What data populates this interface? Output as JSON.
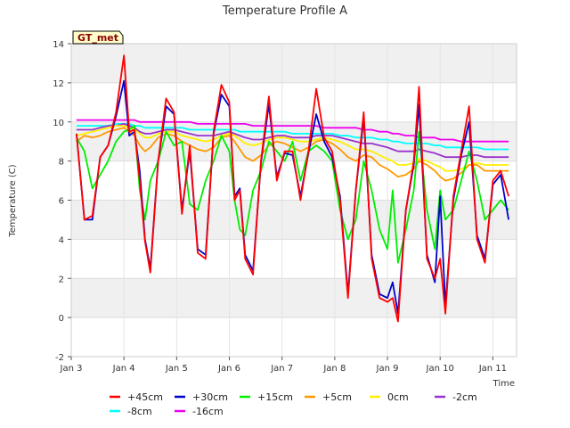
{
  "chart_data": {
    "type": "line",
    "title": "Temperature Profile A",
    "xlabel": "Time",
    "ylabel": "Temperature (C)",
    "ylim": [
      -2,
      14
    ],
    "yticks": [
      -2,
      0,
      2,
      4,
      6,
      8,
      10,
      12,
      14
    ],
    "xlim": [
      3,
      11.45
    ],
    "xticks": [
      3,
      4,
      5,
      6,
      7,
      8,
      9,
      10,
      11
    ],
    "xtick_labels": [
      "Jan 3",
      "Jan 4",
      "Jan 5",
      "Jan 6",
      "Jan 7",
      "Jan 8",
      "Jan 9",
      "Jan 10",
      "Jan 11"
    ],
    "grid": true,
    "badge": "GT_met",
    "legend_placement": "bottom",
    "x": [
      3.1,
      3.25,
      3.4,
      3.55,
      3.7,
      3.85,
      4.0,
      4.1,
      4.2,
      4.3,
      4.4,
      4.5,
      4.65,
      4.8,
      4.95,
      5.1,
      5.25,
      5.4,
      5.55,
      5.7,
      5.85,
      6.0,
      6.1,
      6.2,
      6.3,
      6.45,
      6.6,
      6.75,
      6.9,
      7.05,
      7.2,
      7.35,
      7.5,
      7.65,
      7.8,
      7.95,
      8.1,
      8.25,
      8.4,
      8.55,
      8.7,
      8.85,
      9.0,
      9.1,
      9.2,
      9.35,
      9.5,
      9.6,
      9.75,
      9.9,
      10.0,
      10.1,
      10.25,
      10.4,
      10.55,
      10.7,
      10.85,
      11.0,
      11.15,
      11.3
    ],
    "series": [
      {
        "name": "+45cm",
        "color": "#ff0000",
        "values": [
          9.4,
          5.0,
          5.2,
          8.2,
          8.8,
          10.5,
          13.4,
          9.5,
          9.6,
          7.0,
          3.9,
          2.3,
          8.0,
          11.2,
          10.5,
          5.3,
          8.8,
          3.3,
          3.0,
          9.5,
          11.9,
          11.0,
          6.0,
          6.5,
          3.0,
          2.2,
          8.0,
          11.3,
          7.0,
          8.5,
          8.5,
          6.0,
          8.5,
          11.7,
          9.2,
          8.5,
          6.0,
          1.0,
          6.5,
          10.5,
          3.0,
          1.0,
          0.8,
          1.0,
          -0.2,
          5.5,
          8.0,
          11.8,
          3.0,
          2.0,
          3.0,
          0.2,
          6.2,
          8.5,
          10.8,
          4.0,
          2.8,
          7.0,
          7.5,
          6.2
        ]
      },
      {
        "name": "+30cm",
        "color": "#0000cc",
        "values": [
          9.4,
          5.0,
          5.0,
          8.2,
          8.8,
          10.3,
          12.1,
          9.3,
          9.5,
          7.5,
          4.0,
          2.5,
          8.0,
          10.8,
          10.4,
          5.5,
          8.5,
          3.5,
          3.2,
          9.4,
          11.4,
          10.8,
          6.2,
          6.6,
          3.2,
          2.4,
          7.9,
          10.9,
          7.2,
          8.4,
          8.3,
          6.2,
          8.4,
          10.4,
          9.0,
          8.2,
          6.2,
          1.2,
          6.5,
          10.2,
          3.2,
          1.2,
          1.0,
          1.8,
          0.2,
          5.5,
          7.8,
          10.9,
          3.2,
          1.8,
          6.2,
          0.6,
          6.0,
          8.3,
          10.0,
          4.2,
          3.0,
          6.8,
          7.3,
          5.0
        ]
      },
      {
        "name": "+15cm",
        "color": "#00ee00",
        "values": [
          9.2,
          8.5,
          6.6,
          7.3,
          8.0,
          9.0,
          9.5,
          9.6,
          9.8,
          6.5,
          5.0,
          7.0,
          8.0,
          9.5,
          8.8,
          9.0,
          5.8,
          5.5,
          7.0,
          8.0,
          9.3,
          8.5,
          6.0,
          4.5,
          4.2,
          6.5,
          7.5,
          9.0,
          8.5,
          8.0,
          9.0,
          7.0,
          8.5,
          8.8,
          8.5,
          8.0,
          5.5,
          4.0,
          5.0,
          8.0,
          6.5,
          4.5,
          3.5,
          6.5,
          2.8,
          4.5,
          6.5,
          9.5,
          5.5,
          3.5,
          6.5,
          5.0,
          5.5,
          7.0,
          8.5,
          7.0,
          5.0,
          5.5,
          6.0,
          5.5
        ]
      },
      {
        "name": "+5cm",
        "color": "#ff9900",
        "values": [
          9.0,
          9.3,
          9.2,
          9.3,
          9.5,
          9.6,
          9.7,
          9.5,
          9.3,
          8.8,
          8.5,
          8.7,
          9.2,
          9.4,
          9.3,
          9.0,
          8.8,
          8.6,
          8.5,
          8.7,
          9.2,
          9.3,
          9.0,
          8.6,
          8.2,
          8.0,
          8.3,
          8.8,
          9.0,
          8.9,
          8.7,
          8.5,
          8.7,
          9.0,
          9.1,
          8.9,
          8.6,
          8.2,
          8.0,
          8.3,
          8.2,
          7.8,
          7.6,
          7.4,
          7.2,
          7.3,
          7.6,
          8.0,
          7.8,
          7.5,
          7.2,
          7.0,
          7.1,
          7.4,
          7.8,
          7.8,
          7.5,
          7.5,
          7.5,
          7.5
        ]
      },
      {
        "name": "0cm",
        "color": "#ffee00",
        "values": [
          9.3,
          9.4,
          9.5,
          9.6,
          9.7,
          9.8,
          9.8,
          9.7,
          9.6,
          9.4,
          9.2,
          9.2,
          9.4,
          9.5,
          9.5,
          9.3,
          9.2,
          9.1,
          9.0,
          9.1,
          9.3,
          9.4,
          9.3,
          9.1,
          8.9,
          8.8,
          8.9,
          9.1,
          9.2,
          9.2,
          9.1,
          9.0,
          9.0,
          9.1,
          9.2,
          9.1,
          9.0,
          8.8,
          8.6,
          8.6,
          8.5,
          8.3,
          8.1,
          8.0,
          7.8,
          7.8,
          7.9,
          8.1,
          8.0,
          7.8,
          7.7,
          7.5,
          7.5,
          7.6,
          7.8,
          7.9,
          7.8,
          7.8,
          7.8,
          7.8
        ]
      },
      {
        "name": "-2cm",
        "color": "#9933cc",
        "values": [
          9.6,
          9.6,
          9.6,
          9.7,
          9.8,
          9.8,
          9.9,
          9.8,
          9.7,
          9.5,
          9.4,
          9.4,
          9.5,
          9.6,
          9.6,
          9.5,
          9.4,
          9.3,
          9.3,
          9.3,
          9.4,
          9.5,
          9.4,
          9.3,
          9.2,
          9.1,
          9.1,
          9.2,
          9.3,
          9.3,
          9.2,
          9.2,
          9.2,
          9.3,
          9.3,
          9.3,
          9.2,
          9.1,
          9.0,
          8.9,
          8.9,
          8.8,
          8.7,
          8.6,
          8.5,
          8.5,
          8.5,
          8.6,
          8.5,
          8.4,
          8.3,
          8.2,
          8.2,
          8.2,
          8.3,
          8.3,
          8.2,
          8.2,
          8.2,
          8.2
        ]
      },
      {
        "name": "-8cm",
        "color": "#00ffff",
        "values": [
          9.8,
          9.8,
          9.8,
          9.8,
          9.8,
          9.9,
          9.9,
          9.9,
          9.8,
          9.8,
          9.7,
          9.7,
          9.7,
          9.7,
          9.7,
          9.7,
          9.6,
          9.6,
          9.6,
          9.6,
          9.6,
          9.6,
          9.6,
          9.5,
          9.5,
          9.5,
          9.5,
          9.5,
          9.5,
          9.5,
          9.4,
          9.4,
          9.4,
          9.4,
          9.4,
          9.4,
          9.3,
          9.3,
          9.2,
          9.2,
          9.2,
          9.1,
          9.1,
          9.0,
          9.0,
          8.9,
          8.9,
          8.9,
          8.9,
          8.8,
          8.8,
          8.7,
          8.7,
          8.7,
          8.7,
          8.7,
          8.6,
          8.6,
          8.6,
          8.6
        ]
      },
      {
        "name": "-16cm",
        "color": "#ee00ee",
        "values": [
          10.1,
          10.1,
          10.1,
          10.1,
          10.1,
          10.1,
          10.1,
          10.1,
          10.1,
          10.0,
          10.0,
          10.0,
          10.0,
          10.0,
          10.0,
          10.0,
          10.0,
          9.9,
          9.9,
          9.9,
          9.9,
          9.9,
          9.9,
          9.9,
          9.9,
          9.8,
          9.8,
          9.8,
          9.8,
          9.8,
          9.8,
          9.8,
          9.8,
          9.8,
          9.7,
          9.7,
          9.7,
          9.7,
          9.7,
          9.6,
          9.6,
          9.5,
          9.5,
          9.4,
          9.4,
          9.3,
          9.3,
          9.2,
          9.2,
          9.2,
          9.1,
          9.1,
          9.1,
          9.0,
          9.0,
          9.0,
          9.0,
          9.0,
          9.0,
          9.0
        ]
      }
    ]
  }
}
